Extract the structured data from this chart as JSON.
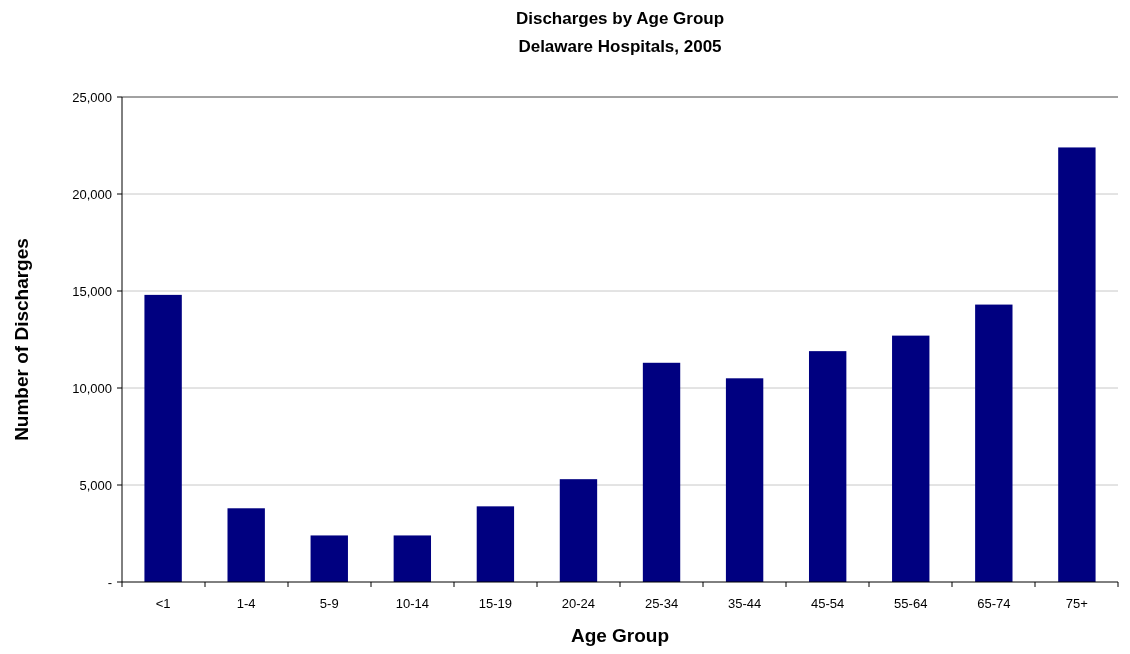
{
  "chart_data": {
    "type": "bar",
    "title": "Discharges by Age Group",
    "subtitle": "Delaware Hospitals, 2005",
    "xlabel": "Age Group",
    "ylabel": "Number of Discharges",
    "categories": [
      "<1",
      "1-4",
      "5-9",
      "10-14",
      "15-19",
      "20-24",
      "25-34",
      "35-44",
      "45-54",
      "55-64",
      "65-74",
      "75+"
    ],
    "values": [
      14800,
      3800,
      2400,
      2400,
      3900,
      5300,
      11300,
      10500,
      11900,
      12700,
      14300,
      22400
    ],
    "color": "#000080",
    "ylim": [
      0,
      25000
    ],
    "yticks": [
      {
        "value": 0,
        "label": "-"
      },
      {
        "value": 5000,
        "label": "5,000"
      },
      {
        "value": 10000,
        "label": "10,000"
      },
      {
        "value": 15000,
        "label": "15,000"
      },
      {
        "value": 20000,
        "label": "20,000"
      },
      {
        "value": 25000,
        "label": "25,000"
      }
    ],
    "grid": "y"
  }
}
